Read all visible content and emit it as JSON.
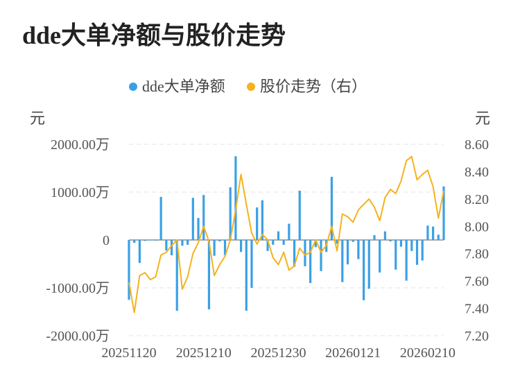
{
  "title": "dde大单净额与股价走势",
  "chart_data": {
    "type": "bar+line",
    "title": "dde大单净额与股价走势",
    "legend": [
      "dde大单净额",
      "股价走势（右）"
    ],
    "legend_placement": "top-center",
    "left_unit": "元",
    "right_unit": "元",
    "left_ticks": [
      "2000.00万",
      "1000.00万",
      "0",
      "-1000.00万",
      "-2000.00万"
    ],
    "right_ticks": [
      "8.60",
      "8.40",
      "8.20",
      "8.00",
      "7.80",
      "7.60",
      "7.40",
      "7.20"
    ],
    "x_tick_labels": [
      "20251120",
      "20251210",
      "20251230",
      "20260121",
      "20260210"
    ],
    "x_tick_index": [
      0,
      14,
      28,
      42,
      56
    ],
    "ylim_left_wan": [
      -2000,
      2000
    ],
    "ylim_right": [
      7.2,
      8.6
    ],
    "grid": true,
    "colors": {
      "bars": "#3aa0e6",
      "line": "#f5b21c",
      "grid": "#e3e3e3",
      "baseline": "#555555"
    },
    "series": [
      {
        "name": "dde大单净额",
        "unit": "万元",
        "axis": "left",
        "values": [
          -1250,
          -60,
          -480,
          -20,
          -10,
          -15,
          900,
          -220,
          -320,
          -1480,
          -120,
          -100,
          880,
          460,
          940,
          -1450,
          -330,
          -30,
          -320,
          1100,
          1750,
          -250,
          -1480,
          -1000,
          680,
          830,
          -230,
          -100,
          180,
          -100,
          340,
          -560,
          1030,
          -550,
          -900,
          -150,
          -650,
          -250,
          1320,
          -80,
          -880,
          -510,
          -40,
          -400,
          -1260,
          -1020,
          100,
          -680,
          180,
          -30,
          -620,
          -140,
          -850,
          -230,
          -520,
          -430,
          300,
          280,
          110,
          1120
        ]
      },
      {
        "name": "股价走势（右）",
        "unit": "元",
        "axis": "right",
        "values": [
          7.59,
          7.37,
          7.64,
          7.66,
          7.61,
          7.63,
          7.79,
          7.81,
          7.86,
          7.9,
          7.54,
          7.63,
          7.8,
          7.88,
          8.0,
          7.89,
          7.64,
          7.72,
          7.78,
          7.9,
          8.12,
          8.38,
          8.16,
          7.95,
          7.87,
          7.94,
          7.9,
          7.77,
          7.72,
          7.81,
          7.68,
          7.71,
          7.84,
          7.79,
          7.81,
          7.9,
          7.81,
          7.86,
          8.0,
          7.82,
          8.09,
          8.07,
          8.03,
          8.12,
          8.16,
          8.2,
          8.14,
          8.04,
          8.21,
          8.27,
          8.24,
          8.33,
          8.48,
          8.51,
          8.34,
          8.38,
          8.41,
          8.29,
          8.06,
          8.26
        ]
      }
    ]
  }
}
